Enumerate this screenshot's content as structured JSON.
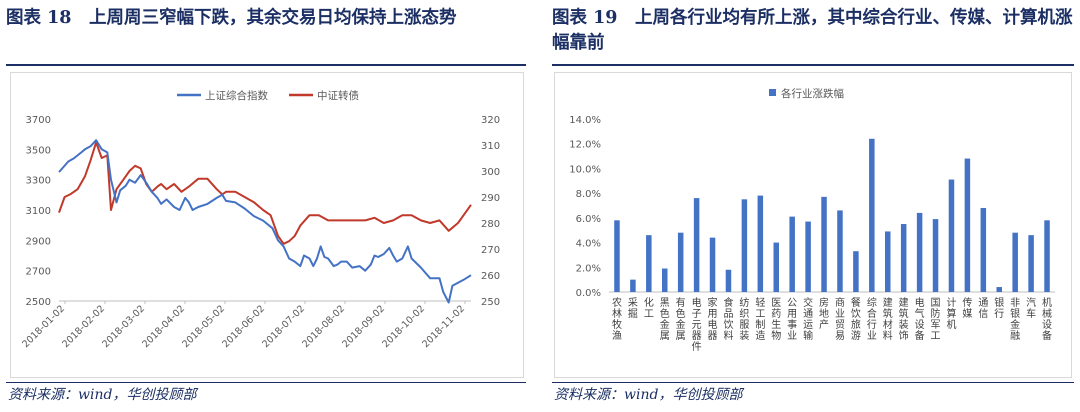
{
  "left_figure": {
    "title": "图表 18　上周周三窄幅下跌，其余交易日均保持上涨态势",
    "source": "资料来源：wind，华创投顾部"
  },
  "right_figure": {
    "title": "图表 19　上周各行业均有所上涨，其中综合行业、传媒、计算机涨幅靠前",
    "source": "资料来源：wind，华创投顾部"
  },
  "colors": {
    "index_line": "#4472c4",
    "cb_line": "#c0392b",
    "bar": "#4472c4",
    "title": "#1b2f64"
  },
  "chart_data": [
    {
      "type": "line",
      "title": "",
      "legend_placement": "top-center",
      "grid": false,
      "x_tick_labels": [
        "2018-01-02",
        "2018-02-02",
        "2018-03-02",
        "2018-04-02",
        "2018-05-02",
        "2018-06-02",
        "2018-07-02",
        "2018-08-02",
        "2018-09-02",
        "2018-10-02",
        "2018-11-02"
      ],
      "x_range": [
        0,
        222
      ],
      "y_left": {
        "ticks": [
          2500,
          2700,
          2900,
          3100,
          3300,
          3500,
          3700
        ],
        "range": [
          2500,
          3700
        ]
      },
      "y_right": {
        "ticks": [
          250,
          260,
          270,
          280,
          290,
          300,
          310,
          320
        ],
        "range": [
          250,
          320
        ]
      },
      "series": [
        {
          "name": "上证综合指数",
          "axis": "left",
          "x": [
            0,
            5,
            8,
            12,
            14,
            17,
            20,
            23,
            26,
            28,
            31,
            33,
            36,
            38,
            41,
            44,
            47,
            50,
            53,
            55,
            58,
            62,
            65,
            68,
            70,
            72,
            75,
            80,
            85,
            88,
            90,
            95,
            100,
            105,
            110,
            115,
            118,
            121,
            124,
            127,
            130,
            132,
            135,
            137,
            139,
            141,
            143,
            145,
            148,
            150,
            152,
            155,
            158,
            162,
            165,
            168,
            170,
            172,
            175,
            178,
            180,
            182,
            185,
            188,
            190,
            195,
            200,
            205,
            207,
            210,
            212,
            215,
            218,
            222
          ],
          "y": [
            3350,
            3420,
            3440,
            3480,
            3500,
            3520,
            3560,
            3500,
            3480,
            3300,
            3150,
            3230,
            3260,
            3300,
            3280,
            3330,
            3280,
            3220,
            3180,
            3140,
            3170,
            3120,
            3100,
            3180,
            3150,
            3100,
            3120,
            3140,
            3180,
            3200,
            3160,
            3150,
            3110,
            3060,
            3030,
            2980,
            2900,
            2860,
            2780,
            2760,
            2730,
            2800,
            2780,
            2730,
            2780,
            2860,
            2790,
            2780,
            2730,
            2740,
            2760,
            2760,
            2720,
            2730,
            2700,
            2740,
            2800,
            2790,
            2810,
            2850,
            2800,
            2760,
            2780,
            2860,
            2780,
            2720,
            2650,
            2650,
            2560,
            2490,
            2600,
            2620,
            2640,
            2670
          ]
        },
        {
          "name": "中证转债",
          "axis": "right",
          "x": [
            0,
            3,
            6,
            10,
            14,
            17,
            20,
            23,
            26,
            28,
            31,
            35,
            38,
            41,
            44,
            47,
            50,
            53,
            55,
            58,
            62,
            66,
            70,
            75,
            80,
            85,
            88,
            90,
            95,
            100,
            105,
            110,
            114,
            118,
            121,
            124,
            127,
            130,
            135,
            140,
            145,
            150,
            155,
            160,
            165,
            170,
            175,
            180,
            185,
            190,
            195,
            200,
            205,
            210,
            215,
            218,
            222
          ],
          "y": [
            284,
            290,
            291,
            293,
            298,
            304,
            311,
            305,
            306,
            285,
            293,
            297,
            300,
            302,
            301,
            295,
            292,
            294,
            295,
            293,
            295,
            292,
            294,
            297,
            297,
            293,
            291,
            292,
            292,
            290,
            288,
            285,
            283,
            275,
            272,
            273,
            275,
            279,
            283,
            283,
            281,
            281,
            281,
            281,
            281,
            282,
            280,
            281,
            283,
            283,
            281,
            280,
            281,
            277,
            280,
            283,
            287
          ]
        }
      ]
    },
    {
      "type": "bar",
      "title": "",
      "legend_placement": "top-center",
      "grid": false,
      "series_name": "各行业涨跌幅",
      "y_unit": "%",
      "ylim": [
        0,
        14
      ],
      "y_ticks": [
        "0.0%",
        "2.0%",
        "4.0%",
        "6.0%",
        "8.0%",
        "10.0%",
        "12.0%",
        "14.0%"
      ],
      "categories": [
        "农林牧渔",
        "采掘",
        "化工",
        "黑色金属",
        "有色金属",
        "电子元器件",
        "家用电器",
        "食品饮料",
        "纺织服装",
        "轻工制造",
        "医药生物",
        "公用事业",
        "交通运输",
        "房地产",
        "商业贸易",
        "餐饮旅游",
        "综合行业",
        "建筑材料",
        "建筑装饰",
        "电气设备",
        "国防军工",
        "计算机",
        "传媒",
        "通信",
        "银行",
        "非银金融",
        "汽车",
        "机械设备"
      ],
      "values": [
        5.8,
        1.0,
        4.6,
        1.9,
        4.8,
        7.6,
        4.4,
        1.8,
        7.5,
        7.8,
        4.0,
        6.1,
        5.7,
        7.7,
        6.6,
        3.3,
        12.4,
        4.9,
        5.5,
        6.4,
        5.9,
        9.1,
        10.8,
        6.8,
        0.4,
        4.8,
        4.6,
        5.8
      ]
    }
  ]
}
